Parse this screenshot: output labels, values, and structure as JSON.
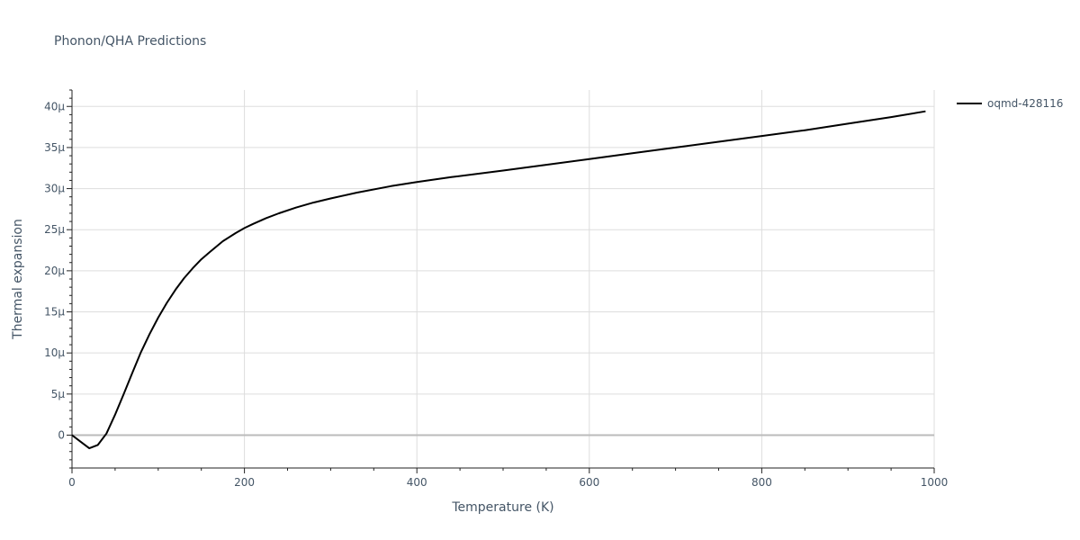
{
  "chart_data": {
    "type": "line",
    "title": "Phonon/QHA Predictions",
    "xlabel": "Temperature (K)",
    "ylabel": "Thermal expansion",
    "xlim": [
      0,
      1000
    ],
    "ylim": [
      -4,
      42
    ],
    "x_ticks": [
      0,
      200,
      400,
      600,
      800,
      1000
    ],
    "x_tick_labels": [
      "0",
      "200",
      "400",
      "600",
      "800",
      "1000"
    ],
    "y_ticks": [
      0,
      5,
      10,
      15,
      20,
      25,
      30,
      35,
      40
    ],
    "y_tick_labels": [
      "0",
      "5μ",
      "10μ",
      "15μ",
      "20μ",
      "25μ",
      "30μ",
      "35μ",
      "40μ"
    ],
    "grid": true,
    "legend_position": "top-right",
    "series": [
      {
        "name": "oqmd-428116",
        "color": "#000000",
        "x": [
          0,
          10,
          20,
          30,
          40,
          50,
          60,
          70,
          80,
          90,
          100,
          110,
          120,
          130,
          140,
          150,
          160,
          175,
          190,
          200,
          210,
          225,
          240,
          260,
          280,
          300,
          330,
          370,
          400,
          440,
          500,
          550,
          600,
          650,
          700,
          750,
          800,
          850,
          900,
          950,
          990
        ],
        "y": [
          0,
          -0.8,
          -1.6,
          -1.2,
          0.2,
          2.5,
          5.0,
          7.6,
          10.1,
          12.3,
          14.3,
          16.1,
          17.7,
          19.1,
          20.3,
          21.4,
          22.3,
          23.6,
          24.6,
          25.2,
          25.7,
          26.4,
          27.0,
          27.7,
          28.3,
          28.8,
          29.5,
          30.3,
          30.8,
          31.4,
          32.2,
          32.9,
          33.6,
          34.3,
          35.0,
          35.7,
          36.4,
          37.1,
          37.9,
          38.7,
          39.4
        ]
      }
    ]
  }
}
